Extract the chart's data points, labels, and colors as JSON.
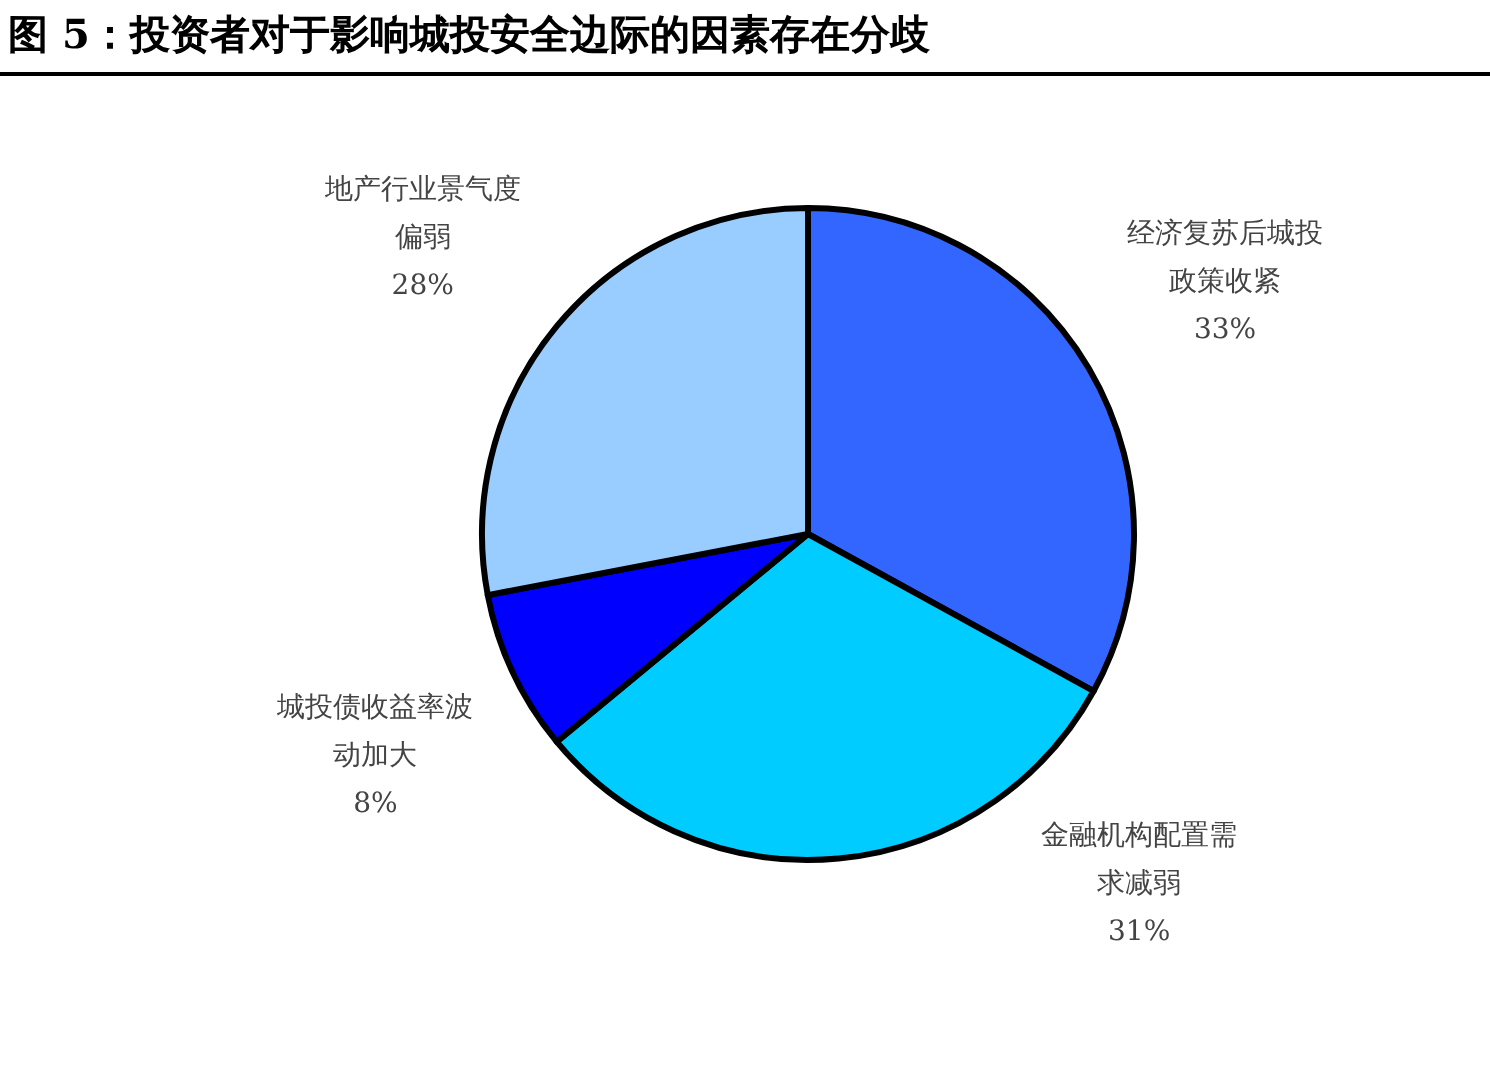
{
  "chart_data": {
    "type": "pie",
    "title": "图 5：投资者对于影响城投安全边际的因素存在分歧",
    "categories": [
      "经济复苏后城投政策收紧",
      "金融机构配置需求减弱",
      "城投债收益率波动加大",
      "地产行业景气度偏弱"
    ],
    "values": [
      33,
      31,
      8,
      28
    ],
    "colors": [
      "#3366ff",
      "#00ccff",
      "#0000ff",
      "#99ccff"
    ],
    "value_labels": [
      "33%",
      "31%",
      "8%",
      "28%"
    ]
  }
}
